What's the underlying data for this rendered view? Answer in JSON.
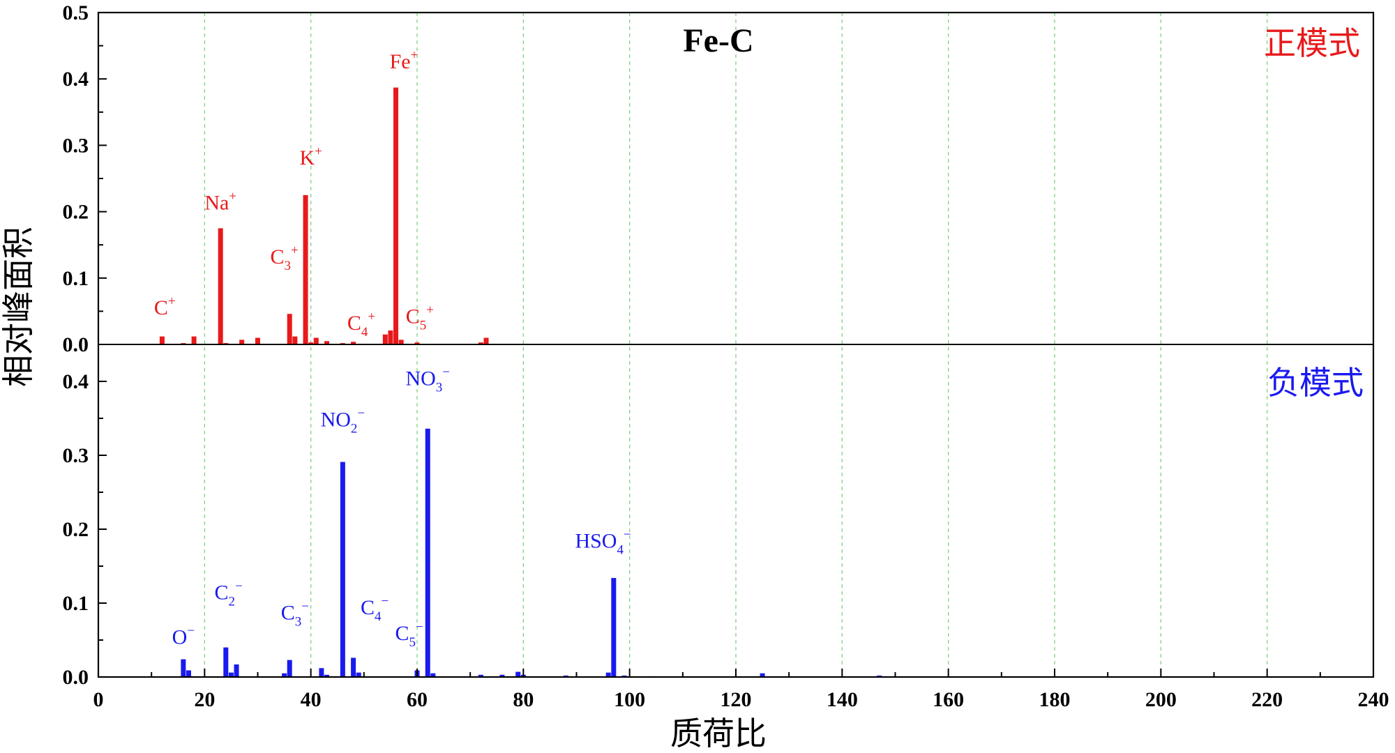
{
  "chart_data": {
    "type": "bar",
    "title": "Fe-C",
    "xlabel": "质荷比",
    "ylabel": "相对峰面积",
    "xlim": [
      0,
      240
    ],
    "x_ticks": [
      "0",
      "20",
      "40",
      "60",
      "80",
      "100",
      "120",
      "140",
      "160",
      "180",
      "200",
      "220",
      "240"
    ],
    "grid": "vertical dashed green at x tick positions",
    "panels": [
      {
        "name": "正模式",
        "color": "#e8191b",
        "ylim": [
          0,
          0.5
        ],
        "y_ticks": [
          "0.0",
          "0.1",
          "0.2",
          "0.3",
          "0.4",
          "0.5"
        ],
        "points": [
          {
            "x": 7,
            "y": 0.001
          },
          {
            "x": 12,
            "y": 0.012
          },
          {
            "x": 16,
            "y": 0.002
          },
          {
            "x": 18,
            "y": 0.012
          },
          {
            "x": 23,
            "y": 0.175
          },
          {
            "x": 24,
            "y": 0.002
          },
          {
            "x": 27,
            "y": 0.007
          },
          {
            "x": 30,
            "y": 0.01
          },
          {
            "x": 36,
            "y": 0.046
          },
          {
            "x": 37,
            "y": 0.012
          },
          {
            "x": 39,
            "y": 0.225
          },
          {
            "x": 40,
            "y": 0.003
          },
          {
            "x": 41,
            "y": 0.01
          },
          {
            "x": 43,
            "y": 0.005
          },
          {
            "x": 46,
            "y": 0.002
          },
          {
            "x": 48,
            "y": 0.004
          },
          {
            "x": 50,
            "y": 0.001
          },
          {
            "x": 54,
            "y": 0.015
          },
          {
            "x": 55,
            "y": 0.021
          },
          {
            "x": 56,
            "y": 0.387
          },
          {
            "x": 57,
            "y": 0.007
          },
          {
            "x": 60,
            "y": 0.003
          },
          {
            "x": 64,
            "y": 0.001
          },
          {
            "x": 72,
            "y": 0.003
          },
          {
            "x": 73,
            "y": 0.01
          }
        ],
        "annotations": [
          {
            "x": 12.5,
            "y": 0.045,
            "base": "C",
            "sup": "+",
            "sub": ""
          },
          {
            "x": 23,
            "y": 0.203,
            "base": "Na",
            "sup": "+",
            "sub": ""
          },
          {
            "x": 35,
            "y": 0.122,
            "base": "C",
            "sup": "+",
            "sub": "3"
          },
          {
            "x": 40,
            "y": 0.271,
            "base": "K",
            "sup": "+",
            "sub": ""
          },
          {
            "x": 49.5,
            "y": 0.022,
            "base": "C",
            "sup": "+",
            "sub": "4"
          },
          {
            "x": 57.5,
            "y": 0.416,
            "base": "Fe",
            "sup": "+",
            "sub": ""
          },
          {
            "x": 60.5,
            "y": 0.032,
            "base": "C",
            "sup": "+",
            "sub": "5"
          }
        ]
      },
      {
        "name": "负模式",
        "color": "#1a1aee",
        "ylim": [
          0,
          0.45
        ],
        "y_ticks": [
          "0.0",
          "0.1",
          "0.2",
          "0.3",
          "0.4"
        ],
        "points": [
          {
            "x": 1,
            "y": 0.001
          },
          {
            "x": 16,
            "y": 0.024
          },
          {
            "x": 17,
            "y": 0.009
          },
          {
            "x": 24,
            "y": 0.04
          },
          {
            "x": 25,
            "y": 0.006
          },
          {
            "x": 26,
            "y": 0.017
          },
          {
            "x": 35,
            "y": 0.005
          },
          {
            "x": 36,
            "y": 0.023
          },
          {
            "x": 42,
            "y": 0.012
          },
          {
            "x": 43,
            "y": 0.003
          },
          {
            "x": 46,
            "y": 0.291
          },
          {
            "x": 48,
            "y": 0.026
          },
          {
            "x": 49,
            "y": 0.006
          },
          {
            "x": 60,
            "y": 0.009
          },
          {
            "x": 62,
            "y": 0.336
          },
          {
            "x": 63,
            "y": 0.005
          },
          {
            "x": 72,
            "y": 0.003
          },
          {
            "x": 76,
            "y": 0.003
          },
          {
            "x": 79,
            "y": 0.007
          },
          {
            "x": 80,
            "y": 0.003
          },
          {
            "x": 88,
            "y": 0.002
          },
          {
            "x": 96,
            "y": 0.006
          },
          {
            "x": 97,
            "y": 0.134
          },
          {
            "x": 99,
            "y": 0.002
          },
          {
            "x": 104,
            "y": 0.001
          },
          {
            "x": 125,
            "y": 0.005
          },
          {
            "x": 147,
            "y": 0.002
          }
        ],
        "annotations": [
          {
            "x": 16,
            "y": 0.045,
            "base": "O",
            "sup": "−",
            "sub": ""
          },
          {
            "x": 24.5,
            "y": 0.105,
            "base": "C",
            "sup": "−",
            "sub": "2"
          },
          {
            "x": 37,
            "y": 0.078,
            "base": "C",
            "sup": "−",
            "sub": "3"
          },
          {
            "x": 46,
            "y": 0.339,
            "base": "NO",
            "sup": "−",
            "sub": "2"
          },
          {
            "x": 52,
            "y": 0.085,
            "base": "C",
            "sup": "−",
            "sub": "4"
          },
          {
            "x": 58.5,
            "y": 0.05,
            "base": "C",
            "sup": "−",
            "sub": "5"
          },
          {
            "x": 62,
            "y": 0.395,
            "base": "NO",
            "sup": "−",
            "sub": "3"
          },
          {
            "x": 95,
            "y": 0.175,
            "base": "HSO",
            "sup": "−",
            "sub": "4"
          }
        ]
      }
    ]
  }
}
